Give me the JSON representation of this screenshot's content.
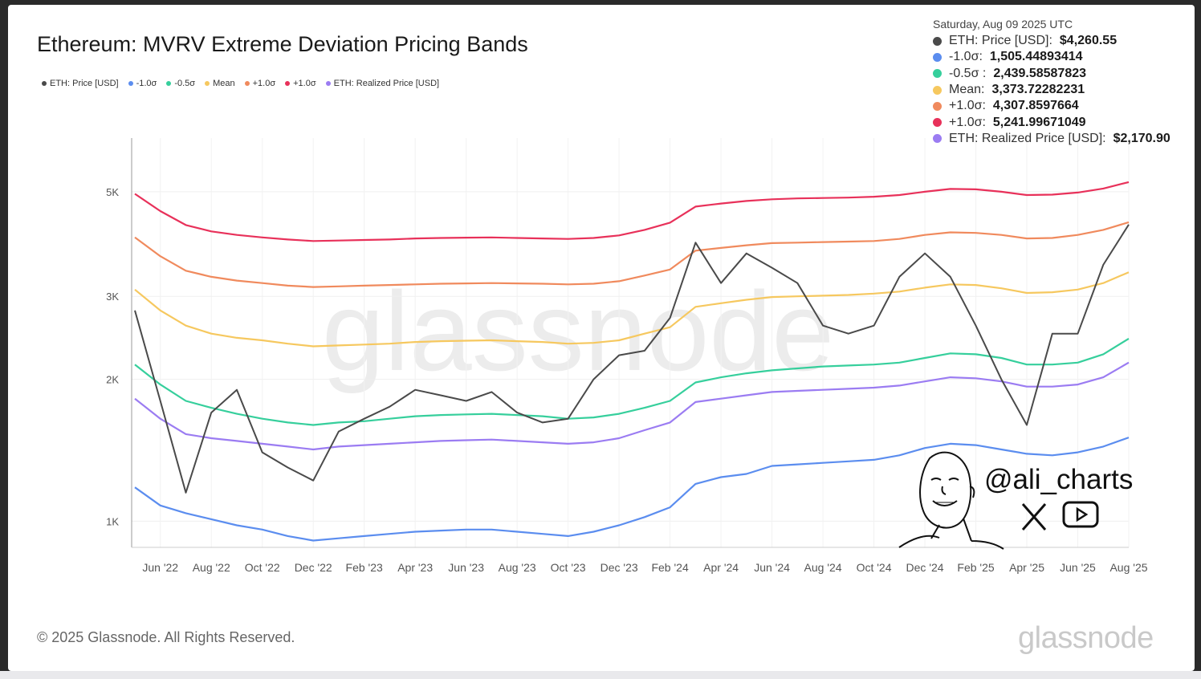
{
  "title": "Ethereum: MVRV Extreme Deviation Pricing Bands",
  "legend": [
    {
      "label": "ETH: Price [USD]",
      "color": "#4a4a4a"
    },
    {
      "label": "-1.0σ",
      "color": "#5b8def"
    },
    {
      "label": "-0.5σ",
      "color": "#36cf9c"
    },
    {
      "label": "Mean",
      "color": "#f6c85f"
    },
    {
      "label": "+1.0σ",
      "color": "#f08a5d"
    },
    {
      "label": "+1.0σ",
      "color": "#e8315a"
    },
    {
      "label": "ETH: Realized Price [USD]",
      "color": "#9b7cf2"
    }
  ],
  "tooltip": {
    "date": "Saturday, Aug 09 2025 UTC",
    "rows": [
      {
        "label": "ETH: Price [USD]:",
        "value": "$4,260.55",
        "color": "#4a4a4a"
      },
      {
        "label": "-1.0σ:",
        "value": "1,505.44893414",
        "color": "#5b8def"
      },
      {
        "label": "-0.5σ :",
        "value": "2,439.58587823",
        "color": "#36cf9c"
      },
      {
        "label": "Mean:",
        "value": "3,373.72282231",
        "color": "#f6c85f"
      },
      {
        "label": "+1.0σ:",
        "value": "4,307.8597664",
        "color": "#f08a5d"
      },
      {
        "label": "+1.0σ:",
        "value": "5,241.99671049",
        "color": "#e8315a"
      },
      {
        "label": "ETH: Realized Price [USD]:",
        "value": "$2,170.90",
        "color": "#9b7cf2"
      }
    ]
  },
  "watermark": "glassnode",
  "handle": "@ali_charts",
  "social_icons": [
    "x-logo-icon",
    "youtube-icon"
  ],
  "copyright": "© 2025 Glassnode. All Rights Reserved.",
  "brand": "glassnode",
  "chart_data": {
    "type": "line",
    "y_scale": "log",
    "y_ticks": [
      {
        "label": "1K",
        "value": 1000
      },
      {
        "label": "2K",
        "value": 2000
      },
      {
        "label": "3K",
        "value": 3000
      },
      {
        "label": "5K",
        "value": 5000
      }
    ],
    "x_ticks": [
      "Jun '22",
      "Aug '22",
      "Oct '22",
      "Dec '22",
      "Feb '23",
      "Apr '23",
      "Jun '23",
      "Aug '23",
      "Oct '23",
      "Dec '23",
      "Feb '24",
      "Apr '24",
      "Jun '24",
      "Aug '24",
      "Oct '24",
      "Dec '24",
      "Feb '25",
      "Apr '25",
      "Jun '25",
      "Aug '25"
    ],
    "x": [
      "2022-05",
      "2022-06",
      "2022-07",
      "2022-08",
      "2022-09",
      "2022-10",
      "2022-11",
      "2022-12",
      "2023-01",
      "2023-02",
      "2023-03",
      "2023-04",
      "2023-05",
      "2023-06",
      "2023-07",
      "2023-08",
      "2023-09",
      "2023-10",
      "2023-11",
      "2023-12",
      "2024-01",
      "2024-02",
      "2024-03",
      "2024-04",
      "2024-05",
      "2024-06",
      "2024-07",
      "2024-08",
      "2024-09",
      "2024-10",
      "2024-11",
      "2024-12",
      "2025-01",
      "2025-02",
      "2025-03",
      "2025-04",
      "2025-05",
      "2025-06",
      "2025-07",
      "2025-08"
    ],
    "series": [
      {
        "name": "ETH: Price [USD]",
        "color": "#4a4a4a",
        "values": [
          2800,
          1800,
          1150,
          1700,
          1900,
          1400,
          1300,
          1220,
          1550,
          1650,
          1750,
          1900,
          1850,
          1800,
          1880,
          1700,
          1620,
          1650,
          2000,
          2250,
          2300,
          2700,
          3900,
          3200,
          3700,
          3450,
          3200,
          2600,
          2500,
          2600,
          3300,
          3700,
          3300,
          2600,
          2000,
          1600,
          2500,
          2500,
          3500,
          4260
        ]
      },
      {
        "name": "-1.0σ",
        "color": "#5b8def",
        "values": [
          1180,
          1080,
          1040,
          1010,
          980,
          960,
          930,
          910,
          920,
          930,
          940,
          950,
          955,
          960,
          960,
          950,
          940,
          930,
          950,
          980,
          1020,
          1070,
          1200,
          1240,
          1260,
          1310,
          1320,
          1330,
          1340,
          1350,
          1380,
          1430,
          1460,
          1450,
          1420,
          1390,
          1380,
          1400,
          1440,
          1505
        ]
      },
      {
        "name": "-0.5σ",
        "color": "#36cf9c",
        "values": [
          2150,
          1950,
          1800,
          1740,
          1690,
          1650,
          1620,
          1600,
          1620,
          1630,
          1650,
          1670,
          1680,
          1685,
          1690,
          1680,
          1670,
          1650,
          1660,
          1690,
          1740,
          1800,
          1970,
          2020,
          2060,
          2090,
          2110,
          2130,
          2140,
          2150,
          2170,
          2220,
          2270,
          2260,
          2220,
          2150,
          2150,
          2170,
          2260,
          2440
        ]
      },
      {
        "name": "Mean",
        "color": "#f6c85f",
        "values": [
          3100,
          2800,
          2600,
          2500,
          2450,
          2420,
          2380,
          2350,
          2360,
          2370,
          2380,
          2400,
          2410,
          2415,
          2420,
          2410,
          2400,
          2380,
          2390,
          2420,
          2500,
          2580,
          2850,
          2900,
          2950,
          2990,
          3000,
          3010,
          3020,
          3040,
          3070,
          3130,
          3180,
          3170,
          3120,
          3050,
          3060,
          3100,
          3200,
          3374
        ]
      },
      {
        "name": "+1.0σ",
        "color": "#f08a5d",
        "values": [
          4000,
          3650,
          3400,
          3300,
          3240,
          3200,
          3160,
          3140,
          3150,
          3160,
          3170,
          3180,
          3190,
          3195,
          3200,
          3195,
          3190,
          3180,
          3190,
          3230,
          3320,
          3420,
          3750,
          3800,
          3850,
          3890,
          3900,
          3910,
          3920,
          3930,
          3970,
          4050,
          4100,
          4090,
          4050,
          3980,
          3990,
          4050,
          4150,
          4308
        ]
      },
      {
        "name": "+1.0σ",
        "color": "#e8315a",
        "values": [
          4950,
          4550,
          4250,
          4120,
          4050,
          4000,
          3960,
          3930,
          3940,
          3950,
          3960,
          3980,
          3990,
          3995,
          4000,
          3990,
          3980,
          3970,
          3990,
          4040,
          4150,
          4300,
          4650,
          4720,
          4780,
          4820,
          4840,
          4850,
          4860,
          4880,
          4920,
          5000,
          5070,
          5060,
          5000,
          4920,
          4930,
          4980,
          5080,
          5242
        ]
      },
      {
        "name": "ETH: Realized Price [USD]",
        "color": "#9b7cf2",
        "values": [
          1820,
          1650,
          1530,
          1500,
          1480,
          1460,
          1440,
          1420,
          1440,
          1450,
          1460,
          1470,
          1480,
          1485,
          1490,
          1480,
          1470,
          1460,
          1470,
          1500,
          1560,
          1620,
          1790,
          1820,
          1850,
          1880,
          1890,
          1900,
          1910,
          1920,
          1940,
          1980,
          2020,
          2010,
          1980,
          1930,
          1930,
          1950,
          2020,
          2171
        ]
      }
    ]
  }
}
